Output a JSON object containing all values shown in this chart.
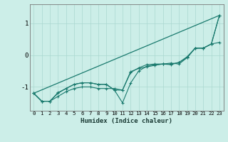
{
  "xlabel": "Humidex (Indice chaleur)",
  "ylabel": "",
  "bg_color": "#cceee8",
  "grid_color": "#aad8d0",
  "line_color": "#1a7a6e",
  "xlim": [
    -0.5,
    23.5
  ],
  "ylim": [
    -1.75,
    1.6
  ],
  "yticks": [
    -1,
    0,
    1
  ],
  "xticks": [
    0,
    1,
    2,
    3,
    4,
    5,
    6,
    7,
    8,
    9,
    10,
    11,
    12,
    13,
    14,
    15,
    16,
    17,
    18,
    19,
    20,
    21,
    22,
    23
  ],
  "line1_x": [
    0,
    1,
    2,
    3,
    4,
    5,
    6,
    7,
    8,
    9,
    10,
    11,
    12,
    13,
    14,
    15,
    16,
    17,
    18,
    19,
    20,
    21,
    22,
    23
  ],
  "line1_y": [
    -1.2,
    -1.45,
    -1.45,
    -1.3,
    -1.15,
    -1.05,
    -1.0,
    -1.0,
    -1.05,
    -1.05,
    -1.05,
    -1.1,
    -0.55,
    -0.4,
    -0.3,
    -0.28,
    -0.28,
    -0.25,
    -0.28,
    -0.08,
    0.22,
    0.22,
    0.35,
    1.25
  ],
  "line2_x": [
    0,
    1,
    2,
    3,
    4,
    5,
    6,
    7,
    8,
    9,
    10,
    11,
    12,
    13,
    14,
    15,
    16,
    17,
    18,
    19,
    20,
    21,
    22,
    23
  ],
  "line2_y": [
    -1.2,
    -1.45,
    -1.45,
    -1.2,
    -1.05,
    -0.92,
    -0.87,
    -0.87,
    -0.92,
    -0.92,
    -1.1,
    -1.1,
    -0.52,
    -0.42,
    -0.37,
    -0.32,
    -0.28,
    -0.28,
    -0.23,
    -0.08,
    0.22,
    0.22,
    0.35,
    0.4
  ],
  "line3_x": [
    0,
    1,
    2,
    3,
    4,
    5,
    6,
    7,
    8,
    9,
    10,
    11,
    12,
    13,
    14,
    15,
    16,
    17,
    18,
    19,
    20,
    21,
    22,
    23
  ],
  "line3_y": [
    -1.2,
    -1.45,
    -1.45,
    -1.18,
    -1.05,
    -0.92,
    -0.87,
    -0.87,
    -0.92,
    -0.92,
    -1.1,
    -1.5,
    -0.88,
    -0.5,
    -0.35,
    -0.3,
    -0.28,
    -0.3,
    -0.23,
    -0.05,
    0.22,
    0.22,
    0.35,
    1.25
  ],
  "line4_x": [
    0,
    23
  ],
  "line4_y": [
    -1.2,
    1.25
  ]
}
